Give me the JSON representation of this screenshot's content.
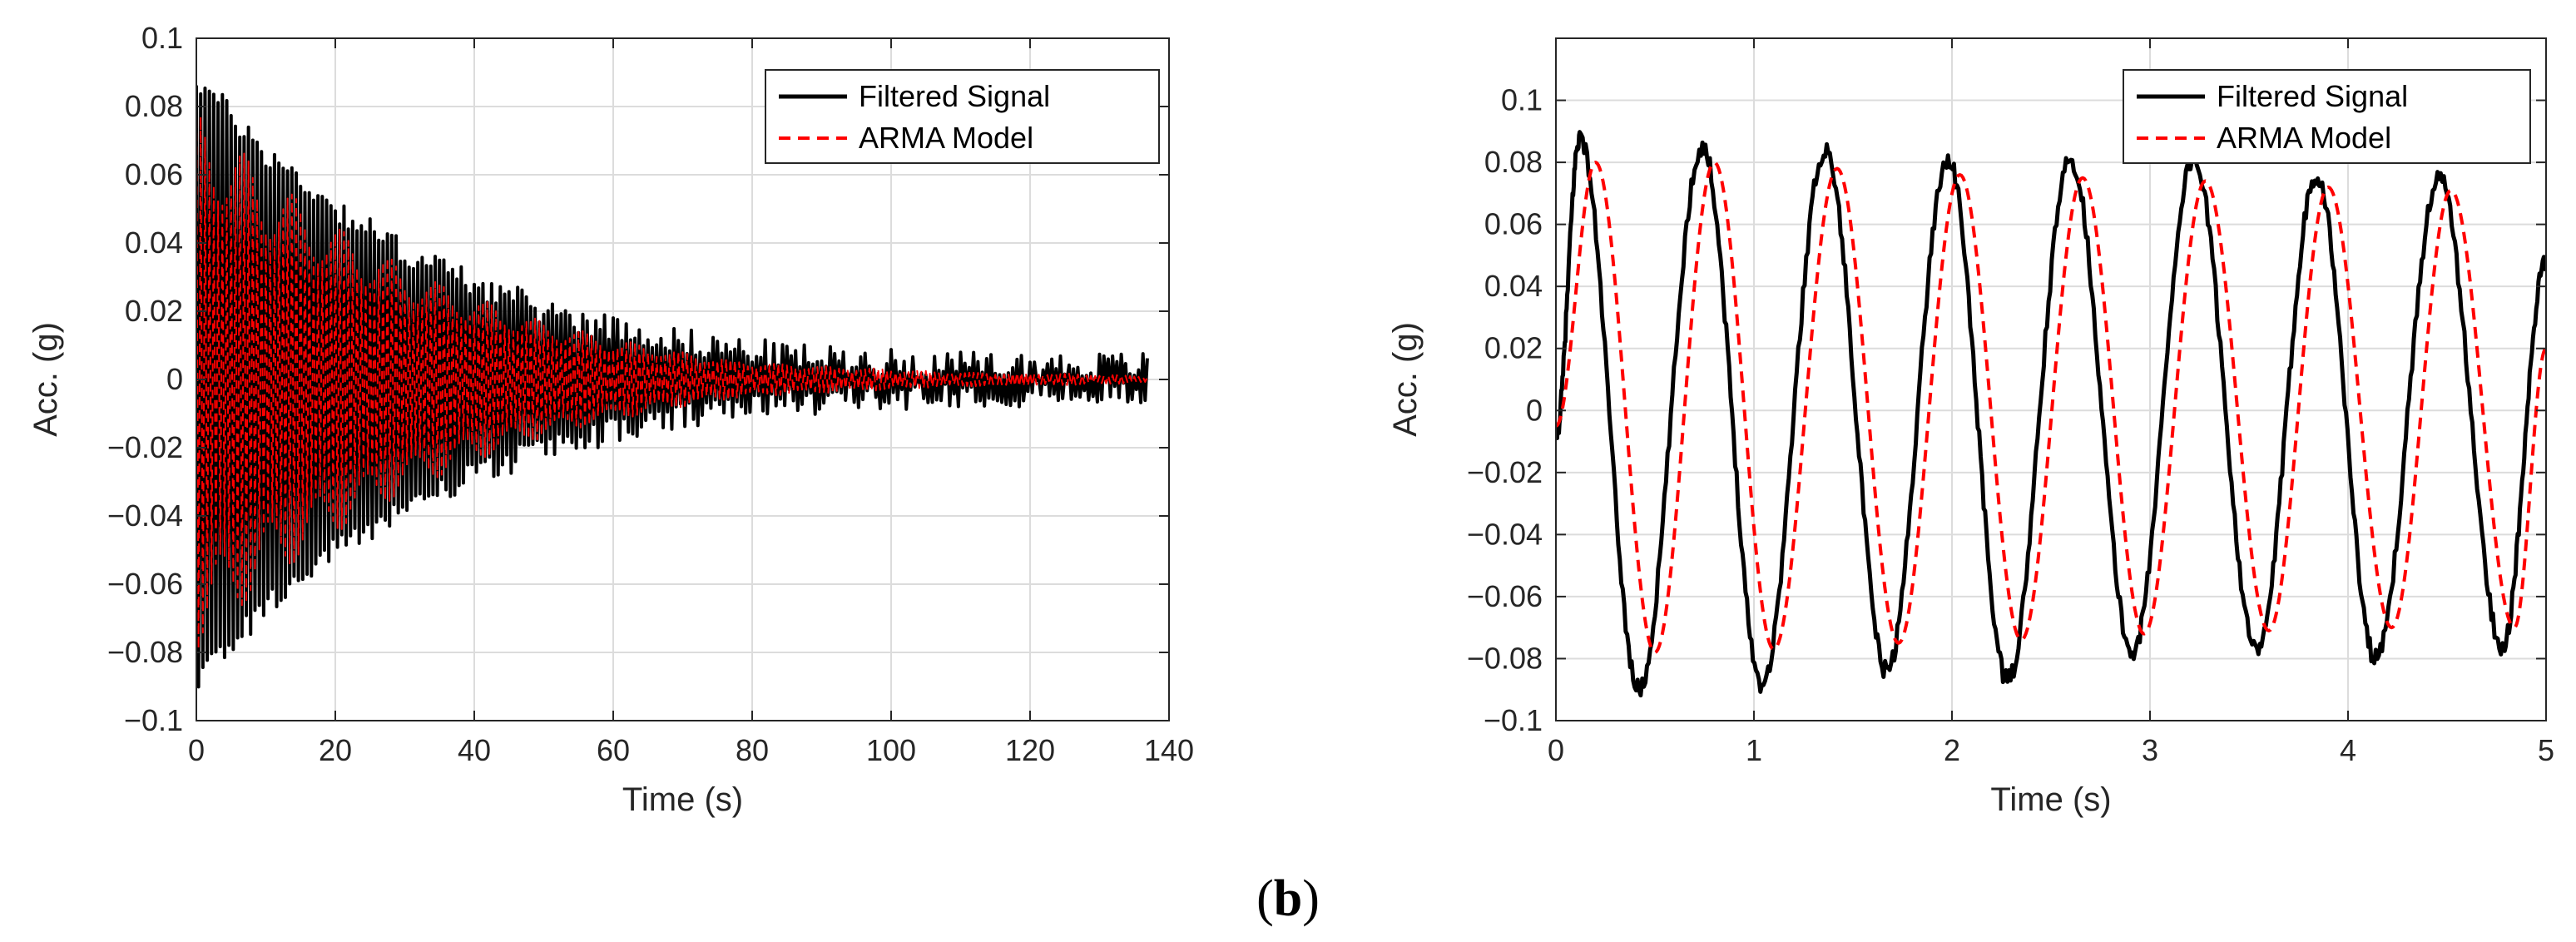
{
  "figure": {
    "label": "b",
    "caption_open": "(",
    "caption_close": ")"
  },
  "colors": {
    "filtered": "#000000",
    "arma": "#ff0000",
    "grid": "#dcdcdc",
    "axis": "#262626"
  },
  "chart_data": [
    {
      "type": "line",
      "title": "",
      "xlabel": "Time (s)",
      "ylabel": "Acc. (g)",
      "xlim": [
        0,
        140
      ],
      "ylim": [
        -0.1,
        0.1
      ],
      "x_ticks": [
        0,
        20,
        40,
        60,
        80,
        100,
        120,
        140
      ],
      "x_tick_labels": [
        "0",
        "20",
        "40",
        "60",
        "80",
        "100",
        "120",
        "140"
      ],
      "y_ticks": [
        -0.1,
        -0.08,
        -0.06,
        -0.04,
        -0.02,
        0,
        0.02,
        0.04,
        0.06,
        0.08,
        0.1
      ],
      "y_tick_labels": [
        "−0.1",
        "−0.08",
        "−0.06",
        "−0.04",
        "−0.02",
        "0",
        "0.02",
        "0.04",
        "0.06",
        "0.08",
        "0.1"
      ],
      "grid": true,
      "legend_position": "top-right",
      "signal": {
        "t_end": 137,
        "frequency_hz": 1.6,
        "noise": 0.004
      },
      "series": [
        {
          "name": "Filtered Signal",
          "style": "solid",
          "color": "#000000",
          "envelope_t": [
            0,
            10,
            20,
            30,
            40,
            50,
            60,
            70,
            80,
            90,
            100,
            110,
            120,
            137
          ],
          "envelope_amp": [
            0.088,
            0.066,
            0.05,
            0.037,
            0.028,
            0.02,
            0.015,
            0.011,
            0.008,
            0.006,
            0.005,
            0.004,
            0.004,
            0.004
          ]
        },
        {
          "name": "ARMA Model",
          "style": "dashed",
          "color": "#ff0000",
          "envelope_t": [
            0,
            10,
            20,
            30,
            40,
            50,
            60,
            70,
            80,
            90,
            100,
            110,
            120,
            137
          ],
          "envelope_amp": [
            0.08,
            0.06,
            0.045,
            0.033,
            0.024,
            0.017,
            0.012,
            0.008,
            0.005,
            0.004,
            0.003,
            0.002,
            0.002,
            0.001
          ]
        }
      ]
    },
    {
      "type": "line",
      "title": "",
      "xlabel": "Time (s)",
      "ylabel": "Acc. (g)",
      "xlim": [
        0,
        5
      ],
      "ylim": [
        -0.1,
        0.12
      ],
      "x_ticks": [
        0,
        1,
        2,
        3,
        4,
        5
      ],
      "x_tick_labels": [
        "0",
        "1",
        "2",
        "3",
        "4",
        "5"
      ],
      "y_ticks": [
        -0.1,
        -0.08,
        -0.06,
        -0.04,
        -0.02,
        0,
        0.02,
        0.04,
        0.06,
        0.08,
        0.1
      ],
      "y_tick_labels": [
        "−0.1",
        "−0.08",
        "−0.06",
        "−0.04",
        "−0.02",
        "0",
        "0.02",
        "0.04",
        "0.06",
        "0.08",
        "0.1"
      ],
      "grid": true,
      "legend_position": "top-right",
      "series": [
        {
          "name": "Filtered Signal",
          "style": "solid",
          "color": "#000000",
          "x": [
            0,
            0.12,
            0.42,
            0.74,
            1.04,
            1.36,
            1.67,
            1.98,
            2.28,
            2.6,
            2.91,
            3.22,
            3.54,
            3.84,
            4.14,
            4.46,
            4.78,
            5.0
          ],
          "y": [
            -0.008,
            0.088,
            -0.09,
            0.085,
            -0.088,
            0.084,
            -0.084,
            0.081,
            -0.087,
            0.081,
            -0.078,
            0.081,
            -0.078,
            0.076,
            -0.08,
            0.075,
            -0.076,
            0.048
          ]
        },
        {
          "name": "ARMA Model",
          "style": "dashed",
          "color": "#ff0000",
          "x": [
            0,
            0.2,
            0.5,
            0.8,
            1.1,
            1.42,
            1.73,
            2.04,
            2.35,
            2.66,
            2.97,
            3.28,
            3.6,
            3.9,
            4.22,
            4.52,
            4.84,
            5.0
          ],
          "y": [
            -0.005,
            0.08,
            -0.078,
            0.08,
            -0.077,
            0.078,
            -0.075,
            0.076,
            -0.074,
            0.075,
            -0.072,
            0.074,
            -0.071,
            0.072,
            -0.07,
            0.071,
            -0.07,
            0.02
          ]
        }
      ]
    }
  ]
}
